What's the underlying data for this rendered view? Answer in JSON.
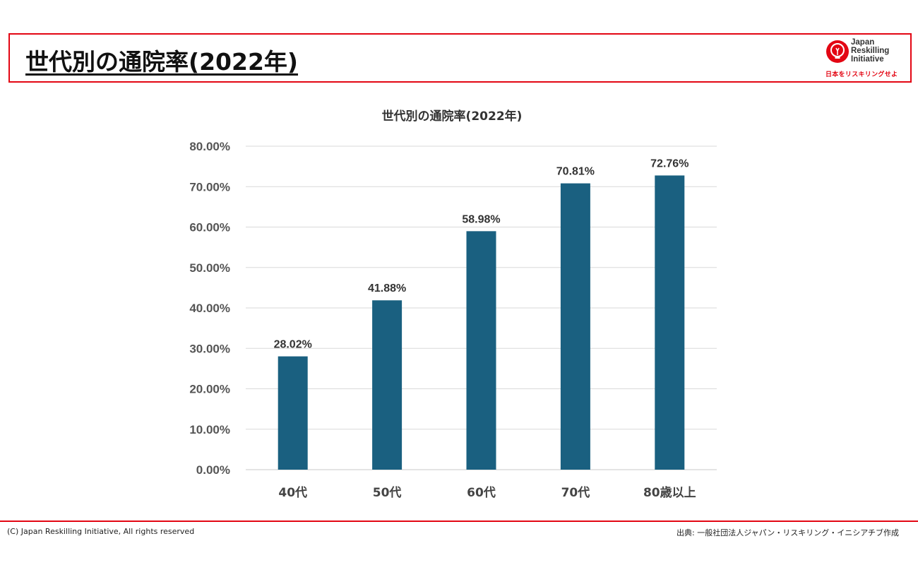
{
  "header": {
    "title": "世代別の通院率(2022年)",
    "logo": {
      "lines": [
        "Japan",
        "Reskilling",
        "Initiative"
      ],
      "tagline": "日本をリスキリングせよ",
      "icon": "lightbulb-head-icon",
      "color": "#e30613"
    }
  },
  "chart_data": {
    "type": "bar",
    "title": "世代別の通院率(2022年)",
    "categories": [
      "40代",
      "50代",
      "60代",
      "70代",
      "80歳以上"
    ],
    "values": [
      28.02,
      41.88,
      58.98,
      70.81,
      72.76
    ],
    "value_labels": [
      "28.02%",
      "41.88%",
      "58.98%",
      "70.81%",
      "72.76%"
    ],
    "y_ticks": [
      "0.00%",
      "10.00%",
      "20.00%",
      "30.00%",
      "40.00%",
      "50.00%",
      "60.00%",
      "70.00%",
      "80.00%"
    ],
    "ylim": [
      0,
      80
    ],
    "grid": true,
    "legend": "none",
    "bar_color": "#1a6080"
  },
  "footer": {
    "copyright": "(C) Japan Reskilling Initiative, All rights reserved",
    "source": "出典: 一般社団法人ジャパン・リスキリング・イニシアチブ作成"
  },
  "accent_color": "#e30613"
}
